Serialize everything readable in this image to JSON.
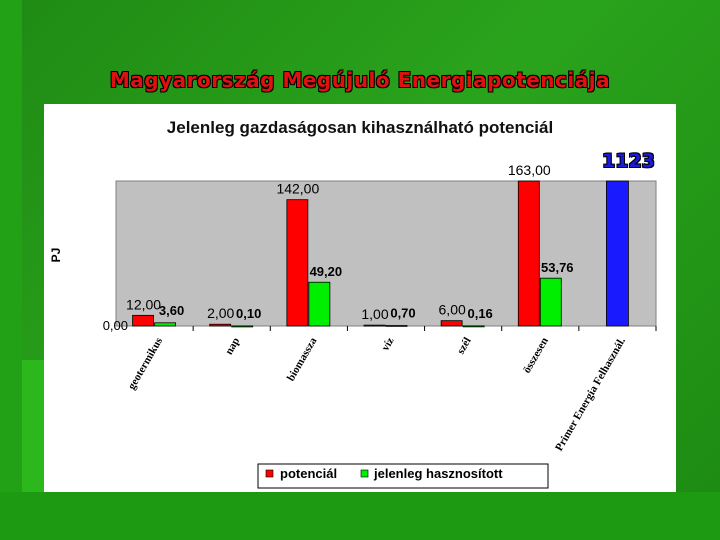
{
  "slide": {
    "title": "Magyarország Megújuló Energiapotenciája"
  },
  "chart_data": {
    "type": "bar",
    "title": "Jelenleg gazdaságosan kihasználható potenciál",
    "ylabel": "PJ",
    "ylim": [
      0,
      163
    ],
    "categories": [
      "geotermikus",
      "nap",
      "biomassza",
      "víz",
      "szél",
      "összesen",
      "Primer Energia Felhasznál."
    ],
    "series": [
      {
        "name": "potenciál",
        "color": "#ff0000",
        "values": [
          12.0,
          2.0,
          142.0,
          1.0,
          6.0,
          163.0,
          null
        ],
        "labels": [
          "12,00",
          "2,00",
          "142,00",
          "1,00",
          "6,00",
          "163,00",
          ""
        ]
      },
      {
        "name": "jelenleg hasznosított",
        "color": "#00ee00",
        "values": [
          3.6,
          0.1,
          49.2,
          0.7,
          0.16,
          53.76,
          null
        ],
        "labels": [
          "3,60",
          "0,10",
          "49,20",
          "0,70",
          "0,16",
          "53,76",
          ""
        ]
      }
    ],
    "extra_bar": {
      "category": "Primer Energia Felhasznál.",
      "value": 1123,
      "label": "1123",
      "color": "#1a1aff"
    },
    "yticks": [
      "0,00"
    ],
    "legend": "bottom",
    "plot_background": "#c0c0c0"
  }
}
